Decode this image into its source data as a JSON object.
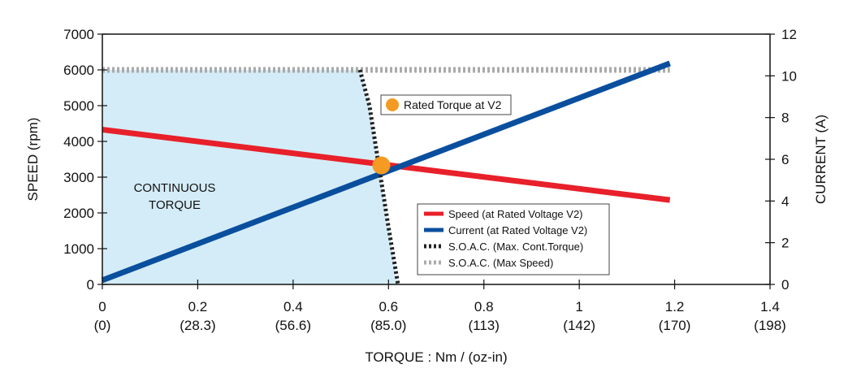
{
  "chart_data": {
    "type": "line",
    "xlabel": "TORQUE : Nm / (oz-in)",
    "ylabel": "SPEED (rpm)",
    "y2label": "CURRENT (A)",
    "xlim": [
      0,
      1.4
    ],
    "ylim": [
      0,
      7000
    ],
    "y2lim": [
      0,
      12
    ],
    "x_ticks": [
      {
        "value": 0,
        "label": "0",
        "sublabel": "(0)"
      },
      {
        "value": 0.2,
        "label": "0.2",
        "sublabel": "(28.3)"
      },
      {
        "value": 0.4,
        "label": "0.4",
        "sublabel": "(56.6)"
      },
      {
        "value": 0.6,
        "label": "0.6",
        "sublabel": "(85.0)"
      },
      {
        "value": 0.8,
        "label": "0.8",
        "sublabel": "(113)"
      },
      {
        "value": 1.0,
        "label": "1",
        "sublabel": "(142)"
      },
      {
        "value": 1.2,
        "label": "1.2",
        "sublabel": "(170)"
      },
      {
        "value": 1.4,
        "label": "1.4",
        "sublabel": "(198)"
      }
    ],
    "y_ticks": [
      0,
      1000,
      2000,
      3000,
      4000,
      5000,
      6000,
      7000
    ],
    "y2_ticks": [
      0,
      2,
      4,
      6,
      8,
      10,
      12
    ],
    "region": {
      "label_lines": [
        "CONTINUOUS",
        "TORQUE"
      ],
      "color": "#d4ecf7",
      "polygon": [
        [
          0,
          0
        ],
        [
          0,
          6000
        ],
        [
          0.54,
          6000
        ],
        [
          0.56,
          5000
        ],
        [
          0.58,
          3300
        ],
        [
          0.6,
          1600
        ],
        [
          0.62,
          0
        ]
      ]
    },
    "series": [
      {
        "name": "Speed (at Rated Voltage V2)",
        "axis": "left",
        "color": "#e8202a",
        "style": "solid",
        "x": [
          0,
          1.19
        ],
        "y": [
          4330,
          2360
        ]
      },
      {
        "name": "Current (at Rated  Voltage V2)",
        "axis": "right",
        "color": "#0a4f9e",
        "style": "solid",
        "x": [
          0,
          1.19
        ],
        "y": [
          0.2,
          10.6
        ]
      },
      {
        "name": "S.O.A.C. (Max. Cont.Torque)",
        "axis": "left",
        "color": "#222222",
        "style": "dashed",
        "x": [
          0.54,
          0.56,
          0.58,
          0.6,
          0.62
        ],
        "y": [
          6000,
          5000,
          3300,
          1600,
          0
        ]
      },
      {
        "name": "S.O.A.C. (Max Speed)",
        "axis": "left",
        "color": "#aaaaaa",
        "style": "dashed",
        "x": [
          0,
          1.19
        ],
        "y": [
          6000,
          6000
        ]
      }
    ],
    "annotation": {
      "label": "Rated Torque at V2",
      "x": 0.585,
      "y": 3330,
      "color": "#f59a23"
    },
    "legend_position": "bottom-right",
    "grid": false
  }
}
